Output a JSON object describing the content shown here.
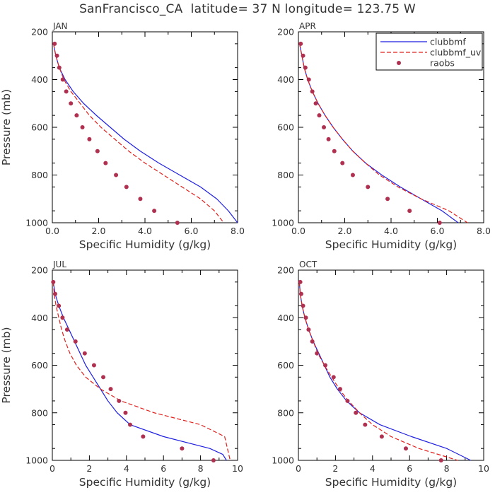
{
  "title": "SanFrancisco_CA  latitude= 37 N longitude= 123.75 W",
  "legend": {
    "entries": [
      {
        "label": "clubbmf",
        "style": "solid",
        "color": "#1f1fe0"
      },
      {
        "label": "clubbmf_uv",
        "style": "dashed",
        "color": "#e0201c"
      },
      {
        "label": "raobs",
        "style": "dot",
        "color": "#b03050"
      }
    ],
    "panel": "APR",
    "placement": "top-right"
  },
  "colors": {
    "clubbmf": "#1f1fe0",
    "clubbmf_uv": "#e0201c",
    "raobs": "#b03050",
    "text": "#333333"
  },
  "chart_data": [
    {
      "type": "line",
      "panel_label": "JAN",
      "xlabel": "Specific Humidity (g/kg)",
      "ylabel": "Pressure (mb)",
      "xlim": [
        0,
        8
      ],
      "ylim": [
        1000,
        200
      ],
      "y_inverted": true,
      "xticks": [
        0,
        2,
        4,
        6,
        8
      ],
      "xtick_labels": [
        "0.0",
        "2.0",
        "4.0",
        "6.0",
        "8.0"
      ],
      "yticks": [
        200,
        400,
        600,
        800,
        1000
      ],
      "ytick_labels": [
        "200",
        "400",
        "600",
        "800",
        "1000"
      ],
      "series": [
        {
          "name": "clubbmf",
          "style": "solid",
          "x": [
            0.05,
            0.15,
            0.3,
            0.55,
            0.9,
            1.35,
            1.9,
            2.5,
            3.1,
            3.8,
            4.6,
            5.5,
            6.4,
            7.1,
            7.6,
            8.0
          ],
          "y": [
            250,
            300,
            350,
            400,
            450,
            500,
            550,
            600,
            650,
            700,
            750,
            800,
            850,
            900,
            950,
            1010
          ]
        },
        {
          "name": "clubbmf_uv",
          "style": "dashed",
          "x": [
            0.05,
            0.15,
            0.3,
            0.5,
            0.8,
            1.2,
            1.6,
            2.1,
            2.7,
            3.3,
            4.0,
            4.8,
            5.6,
            6.4,
            7.0,
            7.4
          ],
          "y": [
            250,
            300,
            350,
            400,
            450,
            500,
            550,
            600,
            650,
            700,
            750,
            800,
            850,
            900,
            950,
            1010
          ]
        },
        {
          "name": "raobs",
          "style": "dot",
          "x": [
            0.1,
            0.2,
            0.3,
            0.45,
            0.6,
            0.8,
            1.05,
            1.3,
            1.6,
            1.95,
            2.3,
            2.75,
            3.2,
            3.8,
            4.4,
            5.4
          ],
          "y": [
            250,
            300,
            350,
            400,
            450,
            500,
            550,
            600,
            650,
            700,
            750,
            800,
            850,
            900,
            950,
            1000
          ]
        }
      ]
    },
    {
      "type": "line",
      "panel_label": "APR",
      "xlabel": "Specific Humidity (g/kg)",
      "ylabel": "",
      "xlim": [
        0,
        8
      ],
      "ylim": [
        1000,
        200
      ],
      "y_inverted": true,
      "xticks": [
        0,
        2,
        4,
        6,
        8
      ],
      "xtick_labels": [
        "0.0",
        "2.0",
        "4.0",
        "6.0",
        "8.0"
      ],
      "yticks": [
        200,
        400,
        600,
        800,
        1000
      ],
      "ytick_labels": [
        "200",
        "400",
        "600",
        "800",
        "1000"
      ],
      "series": [
        {
          "name": "clubbmf",
          "style": "solid",
          "x": [
            0.05,
            0.15,
            0.25,
            0.4,
            0.6,
            0.85,
            1.15,
            1.5,
            1.9,
            2.35,
            2.9,
            3.6,
            4.4,
            5.3,
            6.2,
            6.9
          ],
          "y": [
            250,
            300,
            350,
            400,
            450,
            500,
            550,
            600,
            650,
            700,
            750,
            800,
            850,
            900,
            950,
            1000
          ]
        },
        {
          "name": "clubbmf_uv",
          "style": "dashed",
          "x": [
            0.05,
            0.15,
            0.25,
            0.4,
            0.6,
            0.85,
            1.15,
            1.5,
            1.9,
            2.35,
            2.9,
            3.5,
            4.3,
            5.3,
            6.5,
            7.3
          ],
          "y": [
            250,
            300,
            350,
            400,
            450,
            500,
            550,
            600,
            650,
            700,
            750,
            800,
            850,
            900,
            950,
            1010
          ]
        },
        {
          "name": "raobs",
          "style": "dot",
          "x": [
            0.1,
            0.2,
            0.3,
            0.45,
            0.6,
            0.75,
            0.9,
            1.1,
            1.3,
            1.55,
            1.9,
            2.35,
            3.0,
            3.85,
            4.8,
            6.1
          ],
          "y": [
            250,
            300,
            350,
            400,
            450,
            500,
            550,
            600,
            650,
            700,
            750,
            800,
            850,
            900,
            950,
            1000
          ]
        }
      ]
    },
    {
      "type": "line",
      "panel_label": "JUL",
      "xlabel": "Specific Humidity (g/kg)",
      "ylabel": "Pressure (mb)",
      "xlim": [
        0,
        10
      ],
      "ylim": [
        1000,
        200
      ],
      "y_inverted": true,
      "xticks": [
        0,
        2,
        4,
        6,
        8,
        10
      ],
      "xtick_labels": [
        "0",
        "2",
        "4",
        "6",
        "8",
        "10"
      ],
      "yticks": [
        200,
        400,
        600,
        800,
        1000
      ],
      "ytick_labels": [
        "200",
        "400",
        "600",
        "800",
        "1000"
      ],
      "series": [
        {
          "name": "clubbmf",
          "style": "solid",
          "x": [
            0.05,
            0.15,
            0.35,
            0.6,
            0.9,
            1.2,
            1.5,
            1.8,
            2.2,
            2.6,
            3.0,
            3.5,
            4.2,
            6.0,
            8.5,
            9.2,
            9.4
          ],
          "y": [
            250,
            300,
            350,
            400,
            450,
            500,
            550,
            600,
            650,
            700,
            750,
            800,
            850,
            900,
            950,
            975,
            1000
          ]
        },
        {
          "name": "clubbmf_uv",
          "style": "dashed",
          "x": [
            0.05,
            0.1,
            0.2,
            0.35,
            0.5,
            0.7,
            0.95,
            1.3,
            1.8,
            2.6,
            3.7,
            5.5,
            8.0,
            9.3,
            9.6
          ],
          "y": [
            250,
            300,
            350,
            400,
            450,
            500,
            550,
            600,
            650,
            700,
            750,
            800,
            850,
            900,
            1000
          ]
        },
        {
          "name": "raobs",
          "style": "dot",
          "x": [
            0.05,
            0.15,
            0.35,
            0.55,
            0.8,
            1.25,
            1.75,
            2.25,
            2.75,
            3.15,
            3.6,
            3.95,
            4.2,
            4.9,
            7.0,
            8.7
          ],
          "y": [
            250,
            300,
            350,
            400,
            450,
            500,
            550,
            600,
            650,
            700,
            750,
            800,
            850,
            900,
            950,
            1000
          ]
        }
      ]
    },
    {
      "type": "line",
      "panel_label": "OCT",
      "xlabel": "Specific Humidity (g/kg)",
      "ylabel": "",
      "xlim": [
        0,
        10
      ],
      "ylim": [
        1000,
        200
      ],
      "y_inverted": true,
      "xticks": [
        0,
        2,
        4,
        6,
        8,
        10
      ],
      "xtick_labels": [
        "0",
        "2",
        "4",
        "6",
        "8",
        "10"
      ],
      "yticks": [
        200,
        400,
        600,
        800,
        1000
      ],
      "ytick_labels": [
        "200",
        "400",
        "600",
        "800",
        "1000"
      ],
      "series": [
        {
          "name": "clubbmf",
          "style": "solid",
          "x": [
            0.05,
            0.1,
            0.2,
            0.35,
            0.55,
            0.8,
            1.1,
            1.4,
            1.7,
            2.1,
            2.6,
            3.3,
            4.4,
            6.1,
            8.0,
            9.3
          ],
          "y": [
            250,
            300,
            350,
            400,
            450,
            500,
            550,
            600,
            650,
            700,
            750,
            800,
            850,
            900,
            950,
            1010
          ]
        },
        {
          "name": "clubbmf_uv",
          "style": "dashed",
          "x": [
            0.05,
            0.1,
            0.2,
            0.35,
            0.55,
            0.8,
            1.05,
            1.4,
            1.8,
            2.2,
            2.7,
            3.3,
            4.0,
            5.0,
            6.5,
            8.6
          ],
          "y": [
            250,
            300,
            350,
            400,
            450,
            500,
            550,
            600,
            650,
            700,
            750,
            800,
            850,
            900,
            950,
            1010
          ]
        },
        {
          "name": "raobs",
          "style": "dot",
          "x": [
            0.1,
            0.15,
            0.25,
            0.4,
            0.55,
            0.75,
            1.0,
            1.45,
            1.9,
            2.25,
            2.65,
            3.1,
            3.6,
            4.5,
            5.8,
            7.7
          ],
          "y": [
            250,
            300,
            350,
            400,
            450,
            500,
            550,
            600,
            650,
            700,
            750,
            800,
            850,
            900,
            950,
            1000
          ]
        }
      ]
    }
  ]
}
